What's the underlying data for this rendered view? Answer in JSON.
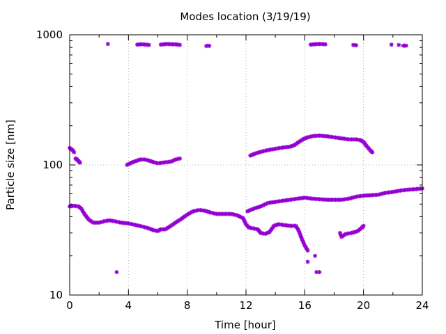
{
  "chart_data": {
    "type": "scatter",
    "title": "Modes location (3/19/19)",
    "xlabel": "Time [hour]",
    "ylabel": "Particle size [nm]",
    "xlim": [
      0,
      24
    ],
    "ylim": [
      10,
      1000
    ],
    "yscale": "log",
    "grid": true,
    "legend": "none",
    "marker_color": "#9400d3",
    "x_ticks": [
      0,
      4,
      8,
      12,
      16,
      20,
      24
    ],
    "x_tick_labels": [
      "0",
      "4",
      "8",
      "12",
      "16",
      "20",
      "24"
    ],
    "y_ticks": [
      10,
      100,
      1000
    ],
    "y_tick_labels": [
      "10",
      "100",
      "1000"
    ],
    "series": [
      {
        "segments": [
          [
            [
              0.0,
              135
            ],
            [
              0.2,
              130
            ],
            [
              0.3,
              125
            ]
          ],
          [
            [
              0.4,
              112
            ],
            [
              0.5,
              110
            ],
            [
              0.6,
              107
            ],
            [
              0.7,
              104
            ]
          ],
          [
            [
              3.9,
              100
            ],
            [
              4.2,
              104
            ],
            [
              4.5,
              107
            ],
            [
              4.8,
              110
            ],
            [
              5.1,
              110
            ],
            [
              5.4,
              108
            ],
            [
              5.7,
              105
            ],
            [
              6.0,
              103
            ],
            [
              6.3,
              104
            ],
            [
              6.6,
              105
            ],
            [
              6.9,
              106
            ],
            [
              7.2,
              110
            ],
            [
              7.5,
              112
            ]
          ],
          [
            [
              12.3,
              118
            ],
            [
              12.6,
              122
            ],
            [
              13.0,
              126
            ],
            [
              13.5,
              130
            ],
            [
              14.0,
              133
            ],
            [
              14.5,
              136
            ],
            [
              15.0,
              138
            ],
            [
              15.3,
              142
            ],
            [
              15.6,
              150
            ],
            [
              15.9,
              158
            ],
            [
              16.2,
              163
            ],
            [
              16.6,
              167
            ],
            [
              17.0,
              168
            ],
            [
              17.5,
              166
            ],
            [
              18.0,
              163
            ],
            [
              18.5,
              160
            ],
            [
              19.0,
              157
            ],
            [
              19.5,
              157
            ],
            [
              19.8,
              155
            ],
            [
              20.0,
              150
            ],
            [
              20.2,
              140
            ],
            [
              20.5,
              128
            ],
            [
              20.6,
              125
            ]
          ]
        ]
      },
      {
        "segments": [
          [
            [
              0.0,
              48
            ],
            [
              0.3,
              48.5
            ],
            [
              0.6,
              48
            ],
            [
              0.8,
              46
            ],
            [
              1.0,
              42
            ],
            [
              1.3,
              38
            ],
            [
              1.6,
              36
            ],
            [
              2.0,
              36
            ],
            [
              2.4,
              37
            ],
            [
              2.7,
              37.5
            ],
            [
              3.0,
              37
            ],
            [
              3.5,
              36
            ],
            [
              4.0,
              35.5
            ],
            [
              4.5,
              34.5
            ],
            [
              5.0,
              33.5
            ],
            [
              5.4,
              32.5
            ],
            [
              5.7,
              31.5
            ],
            [
              6.0,
              31
            ],
            [
              6.2,
              32
            ],
            [
              6.5,
              32
            ],
            [
              6.8,
              33.5
            ],
            [
              7.2,
              36
            ],
            [
              7.6,
              38.5
            ],
            [
              8.0,
              41.5
            ],
            [
              8.4,
              44
            ],
            [
              8.8,
              45
            ],
            [
              9.2,
              44.5
            ],
            [
              9.6,
              43
            ],
            [
              10.0,
              42
            ],
            [
              10.5,
              42
            ],
            [
              11.0,
              42
            ],
            [
              11.4,
              41
            ],
            [
              11.8,
              39
            ],
            [
              12.0,
              35
            ],
            [
              12.2,
              33
            ],
            [
              12.5,
              32.5
            ],
            [
              12.8,
              32
            ],
            [
              13.0,
              30
            ],
            [
              13.3,
              29.5
            ],
            [
              13.6,
              30.5
            ],
            [
              13.9,
              34
            ],
            [
              14.2,
              35
            ],
            [
              14.6,
              34.5
            ],
            [
              15.0,
              34
            ],
            [
              15.4,
              34
            ],
            [
              15.6,
              31
            ],
            [
              15.8,
              27
            ],
            [
              16.0,
              24
            ],
            [
              16.2,
              22
            ]
          ],
          [
            [
              12.1,
              44
            ],
            [
              12.5,
              46
            ],
            [
              13.0,
              48
            ],
            [
              13.5,
              51
            ],
            [
              14.0,
              52
            ],
            [
              14.5,
              53
            ],
            [
              15.0,
              54
            ],
            [
              15.5,
              55
            ],
            [
              16.0,
              56
            ],
            [
              16.5,
              55
            ],
            [
              17.0,
              54.5
            ],
            [
              17.5,
              54
            ],
            [
              18.0,
              54
            ],
            [
              18.5,
              54
            ],
            [
              19.0,
              55
            ],
            [
              19.5,
              57
            ],
            [
              20.0,
              58
            ],
            [
              20.5,
              58.5
            ],
            [
              21.0,
              59
            ],
            [
              21.5,
              61
            ],
            [
              22.0,
              62
            ],
            [
              22.5,
              63.5
            ],
            [
              23.0,
              64.5
            ],
            [
              23.5,
              65
            ],
            [
              24.0,
              66
            ]
          ],
          [
            [
              18.4,
              30
            ],
            [
              18.5,
              28
            ],
            [
              18.8,
              29.5
            ],
            [
              19.2,
              30
            ],
            [
              19.6,
              31
            ],
            [
              19.9,
              33
            ],
            [
              20.0,
              34
            ]
          ]
        ]
      },
      {
        "points": [
          [
            3.2,
            15
          ],
          [
            16.2,
            18
          ],
          [
            16.7,
            20
          ],
          [
            16.8,
            15
          ],
          [
            17.0,
            15
          ]
        ]
      },
      {
        "segments": [
          [
            [
              2.6,
              850
            ]
          ],
          [
            [
              4.6,
              840
            ],
            [
              4.8,
              845
            ],
            [
              5.0,
              845
            ],
            [
              5.2,
              840
            ],
            [
              5.4,
              835
            ]
          ],
          [
            [
              6.2,
              840
            ],
            [
              6.4,
              845
            ],
            [
              6.6,
              850
            ],
            [
              6.8,
              848
            ],
            [
              7.0,
              845
            ],
            [
              7.2,
              845
            ],
            [
              7.4,
              840
            ],
            [
              7.5,
              835
            ]
          ],
          [
            [
              9.3,
              820
            ],
            [
              9.4,
              825
            ],
            [
              9.5,
              822
            ]
          ],
          [
            [
              16.4,
              840
            ],
            [
              16.6,
              845
            ],
            [
              16.8,
              848
            ],
            [
              17.0,
              850
            ],
            [
              17.2,
              848
            ],
            [
              17.4,
              845
            ]
          ],
          [
            [
              19.3,
              835
            ],
            [
              19.5,
              830
            ]
          ],
          [
            [
              21.9,
              840
            ]
          ],
          [
            [
              22.4,
              835
            ]
          ],
          [
            [
              22.7,
              825
            ],
            [
              22.9,
              825
            ]
          ]
        ]
      }
    ]
  }
}
